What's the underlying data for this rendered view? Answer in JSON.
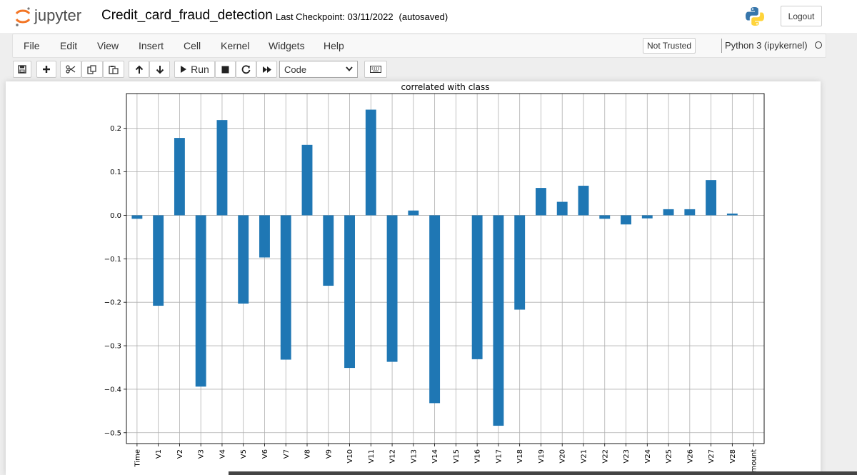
{
  "header": {
    "logo_text": "jupyter",
    "notebook_title": "Credit_card_fraud_detection",
    "checkpoint_text": "Last Checkpoint: 03/11/2022",
    "autosaved_text": "(autosaved)",
    "logout_label": "Logout"
  },
  "menubar": {
    "items": [
      "File",
      "Edit",
      "View",
      "Insert",
      "Cell",
      "Kernel",
      "Widgets",
      "Help"
    ],
    "trust_label": "Not Trusted",
    "kernel_name": "Python 3 (ipykernel)"
  },
  "toolbar": {
    "run_label": "Run",
    "cell_type": "Code",
    "icons": [
      "save-icon",
      "plus-icon",
      "cut-icon",
      "copy-icon",
      "paste-icon",
      "arrow-up-icon",
      "arrow-down-icon",
      "play-icon",
      "stop-icon",
      "restart-icon",
      "fast-forward-icon",
      "keyboard-icon"
    ]
  },
  "colors": {
    "bar": "#1f77b4",
    "grid": "#b0b0b0",
    "logo_orange": "#f37626"
  },
  "chart_data": {
    "type": "bar",
    "title": "correlated with class",
    "xlabel": "",
    "ylabel": "",
    "grid": true,
    "ylim": [
      -0.525,
      0.28
    ],
    "yticks": [
      0.2,
      0.1,
      0.0,
      -0.1,
      -0.2,
      -0.3,
      -0.4,
      -0.5
    ],
    "ytick_labels": [
      "0.2",
      "0.1",
      "0.0",
      "−0.1",
      "−0.2",
      "−0.3",
      "−0.4",
      "−0.5"
    ],
    "categories": [
      "Time",
      "V1",
      "V2",
      "V3",
      "V4",
      "V5",
      "V6",
      "V7",
      "V8",
      "V9",
      "V10",
      "V11",
      "V12",
      "V13",
      "V14",
      "V15",
      "V16",
      "V17",
      "V18",
      "V19",
      "V20",
      "V21",
      "V22",
      "V23",
      "V24",
      "V25",
      "V26",
      "V27",
      "V28",
      "Amount"
    ],
    "category_labels": [
      "Time",
      "V1",
      "V2",
      "V3",
      "V4",
      "V5",
      "V6",
      "V7",
      "V8",
      "V9",
      "V10",
      "V11",
      "V12",
      "V13",
      "V14",
      "V15",
      "V16",
      "V17",
      "V18",
      "V19",
      "V20",
      "V21",
      "V22",
      "V23",
      "V24",
      "V25",
      "V26",
      "V27",
      "V28",
      "mount"
    ],
    "values": [
      -0.008,
      -0.208,
      0.178,
      -0.394,
      0.219,
      -0.203,
      -0.097,
      -0.332,
      0.162,
      -0.162,
      -0.351,
      0.243,
      -0.337,
      0.011,
      -0.432,
      0.0,
      -0.331,
      -0.484,
      -0.217,
      0.063,
      0.031,
      0.068,
      -0.008,
      -0.021,
      -0.007,
      0.014,
      0.014,
      0.081,
      0.004,
      0.0
    ]
  }
}
